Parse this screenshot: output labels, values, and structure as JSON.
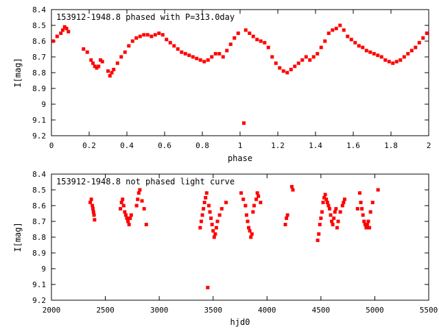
{
  "chart_data": [
    {
      "type": "scatter",
      "title": "153912-1948.8 phased with P=313.0day",
      "xlabel": "phase",
      "ylabel": "I[mag]",
      "xlim": [
        0,
        2
      ],
      "ylim": [
        8.4,
        9.2
      ],
      "y_inverted": true,
      "xticks": [
        0,
        0.2,
        0.4,
        0.6,
        0.8,
        1,
        1.2,
        1.4,
        1.6,
        1.8,
        2
      ],
      "yticks": [
        8.4,
        8.5,
        8.6,
        8.7,
        8.8,
        8.9,
        9,
        9.1,
        9.2
      ],
      "grid": false,
      "marker_color": "#ff0000",
      "series": [
        {
          "x": [
            0.01,
            0.03,
            0.05,
            0.06,
            0.07,
            0.08,
            0.09,
            0.17,
            0.19,
            0.21,
            0.22,
            0.23,
            0.24,
            0.25,
            0.26,
            0.27,
            0.3,
            0.31,
            0.32,
            0.33,
            0.35,
            0.37,
            0.39,
            0.41,
            0.43,
            0.45,
            0.47,
            0.49,
            0.51,
            0.53,
            0.55,
            0.57,
            0.59,
            0.61,
            0.63,
            0.65,
            0.67,
            0.69,
            0.71,
            0.73,
            0.75,
            0.77,
            0.79,
            0.81,
            0.83,
            0.85,
            0.87,
            0.89,
            0.91,
            0.93,
            0.95,
            0.97,
            0.99,
            1.02,
            1.03,
            1.05,
            1.07,
            1.09,
            1.11,
            1.13,
            1.15,
            1.17,
            1.19,
            1.21,
            1.23,
            1.25,
            1.27,
            1.29,
            1.31,
            1.33,
            1.35,
            1.37,
            1.39,
            1.41,
            1.43,
            1.45,
            1.47,
            1.49,
            1.51,
            1.53,
            1.55,
            1.57,
            1.59,
            1.61,
            1.63,
            1.65,
            1.67,
            1.69,
            1.71,
            1.73,
            1.75,
            1.77,
            1.79,
            1.81,
            1.83,
            1.85,
            1.87,
            1.89,
            1.91,
            1.93,
            1.95,
            1.97,
            1.99
          ],
          "y": [
            8.6,
            8.57,
            8.55,
            8.53,
            8.51,
            8.52,
            8.54,
            8.65,
            8.67,
            8.72,
            8.74,
            8.76,
            8.77,
            8.76,
            8.72,
            8.73,
            8.79,
            8.82,
            8.8,
            8.78,
            8.74,
            8.7,
            8.67,
            8.63,
            8.6,
            8.58,
            8.57,
            8.56,
            8.56,
            8.57,
            8.56,
            8.55,
            8.56,
            8.59,
            8.61,
            8.63,
            8.65,
            8.67,
            8.68,
            8.69,
            8.7,
            8.71,
            8.72,
            8.73,
            8.72,
            8.7,
            8.68,
            8.68,
            8.7,
            8.66,
            8.62,
            8.58,
            8.55,
            9.12,
            8.53,
            8.55,
            8.57,
            8.59,
            8.6,
            8.61,
            8.64,
            8.7,
            8.74,
            8.77,
            8.79,
            8.8,
            8.78,
            8.76,
            8.74,
            8.72,
            8.7,
            8.72,
            8.7,
            8.68,
            8.64,
            8.6,
            8.55,
            8.53,
            8.52,
            8.5,
            8.53,
            8.57,
            8.59,
            8.61,
            8.63,
            8.64,
            8.66,
            8.67,
            8.68,
            8.69,
            8.7,
            8.72,
            8.73,
            8.74,
            8.73,
            8.72,
            8.7,
            8.68,
            8.66,
            8.64,
            8.61,
            8.58,
            8.55
          ]
        }
      ]
    },
    {
      "type": "scatter",
      "title": "153912-1948.8 not phased light curve",
      "xlabel": "hjd0",
      "ylabel": "I[mag]",
      "xlim": [
        2000,
        5500
      ],
      "ylim": [
        8.4,
        9.2
      ],
      "y_inverted": true,
      "xticks": [
        2000,
        2500,
        3000,
        3500,
        4000,
        4500,
        5000,
        5500
      ],
      "yticks": [
        8.4,
        8.5,
        8.6,
        8.7,
        8.8,
        8.9,
        9,
        9.1,
        9.2
      ],
      "grid": false,
      "marker_color": "#ff0000",
      "series": [
        {
          "x": [
            2360,
            2370,
            2380,
            2385,
            2390,
            2395,
            2400,
            2640,
            2650,
            2660,
            2670,
            2680,
            2690,
            2700,
            2710,
            2720,
            2730,
            2740,
            2790,
            2800,
            2810,
            2820,
            2840,
            2860,
            2880,
            3380,
            3390,
            3400,
            3410,
            3420,
            3430,
            3440,
            3450,
            3460,
            3470,
            3480,
            3490,
            3500,
            3510,
            3520,
            3530,
            3540,
            3560,
            3580,
            3620,
            3760,
            3780,
            3800,
            3810,
            3820,
            3830,
            3840,
            3850,
            3860,
            3870,
            3880,
            3900,
            3910,
            3920,
            3940,
            4170,
            4180,
            4190,
            4230,
            4240,
            4470,
            4480,
            4490,
            4500,
            4510,
            4520,
            4530,
            4540,
            4550,
            4560,
            4570,
            4580,
            4590,
            4600,
            4610,
            4620,
            4630,
            4640,
            4650,
            4660,
            4680,
            4700,
            4710,
            4720,
            4840,
            4860,
            4870,
            4880,
            4890,
            4900,
            4910,
            4920,
            4930,
            4940,
            4950,
            4960,
            4980,
            5030
          ],
          "y": [
            8.58,
            8.56,
            8.6,
            8.62,
            8.64,
            8.66,
            8.69,
            8.62,
            8.58,
            8.56,
            8.6,
            8.64,
            8.66,
            8.68,
            8.7,
            8.72,
            8.68,
            8.66,
            8.6,
            8.56,
            8.52,
            8.5,
            8.57,
            8.62,
            8.72,
            8.74,
            8.7,
            8.66,
            8.62,
            8.58,
            8.55,
            8.52,
            9.12,
            8.6,
            8.64,
            8.68,
            8.72,
            8.76,
            8.8,
            8.78,
            8.74,
            8.7,
            8.66,
            8.62,
            8.58,
            8.52,
            8.56,
            8.6,
            8.66,
            8.7,
            8.74,
            8.76,
            8.8,
            8.78,
            8.64,
            8.6,
            8.56,
            8.52,
            8.54,
            8.58,
            8.72,
            8.68,
            8.66,
            8.48,
            8.5,
            8.82,
            8.78,
            8.72,
            8.68,
            8.64,
            8.58,
            8.55,
            8.53,
            8.56,
            8.58,
            8.6,
            8.62,
            8.66,
            8.7,
            8.72,
            8.68,
            8.64,
            8.62,
            8.74,
            8.7,
            8.64,
            8.6,
            8.58,
            8.56,
            8.62,
            8.52,
            8.58,
            8.62,
            8.66,
            8.7,
            8.72,
            8.74,
            8.72,
            8.7,
            8.74,
            8.64,
            8.58,
            8.5
          ]
        }
      ]
    }
  ]
}
